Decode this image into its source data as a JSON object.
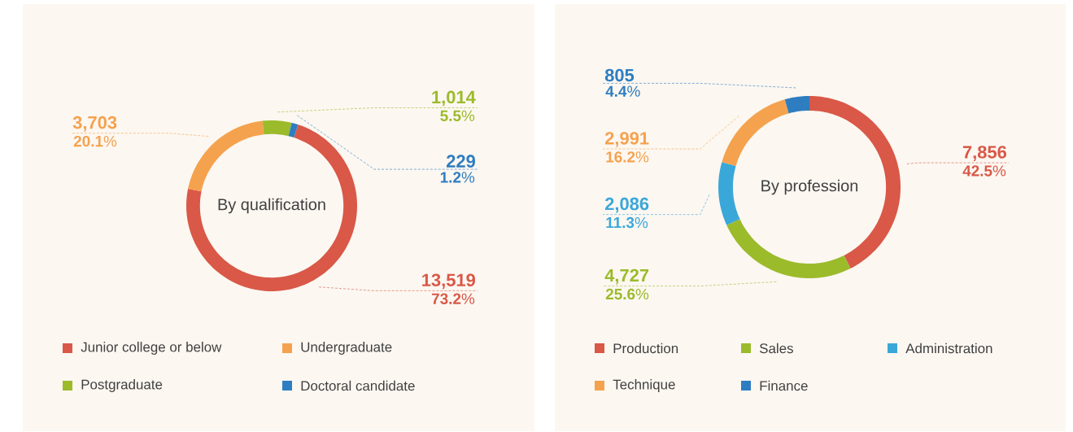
{
  "chart_data": [
    {
      "type": "donut",
      "title": "By qualification",
      "categories": [
        "Junior college or below",
        "Undergraduate",
        "Postgraduate",
        "Doctoral candidate"
      ],
      "values": [
        13519,
        3703,
        1014,
        229
      ],
      "colors": [
        "#d95847",
        "#f5a24e",
        "#9bbb2b",
        "#2f7dc1"
      ],
      "value_labels": [
        "13,519",
        "3,703",
        "1,014",
        "229"
      ],
      "annotations": [
        "**73.2**%",
        "**20.1**%",
        "**5.5**%",
        "**1.2**%"
      ],
      "legend": "bottom"
    },
    {
      "type": "donut",
      "title": "By profession",
      "categories": [
        "Production",
        "Sales",
        "Administration",
        "Technique",
        "Finance"
      ],
      "values": [
        7856,
        4727,
        2086,
        2991,
        805
      ],
      "colors": [
        "#d95847",
        "#9bbb2b",
        "#3aa7d9",
        "#f5a24e",
        "#2f7dc1"
      ],
      "value_labels": [
        "7,856",
        "4,727",
        "2,086",
        "2,991",
        "805"
      ],
      "annotations": [
        "**42.5**%",
        "**25.6**%",
        "**11.3**%",
        "**16.2**%",
        "**4.4**%"
      ],
      "legend": "bottom"
    }
  ]
}
